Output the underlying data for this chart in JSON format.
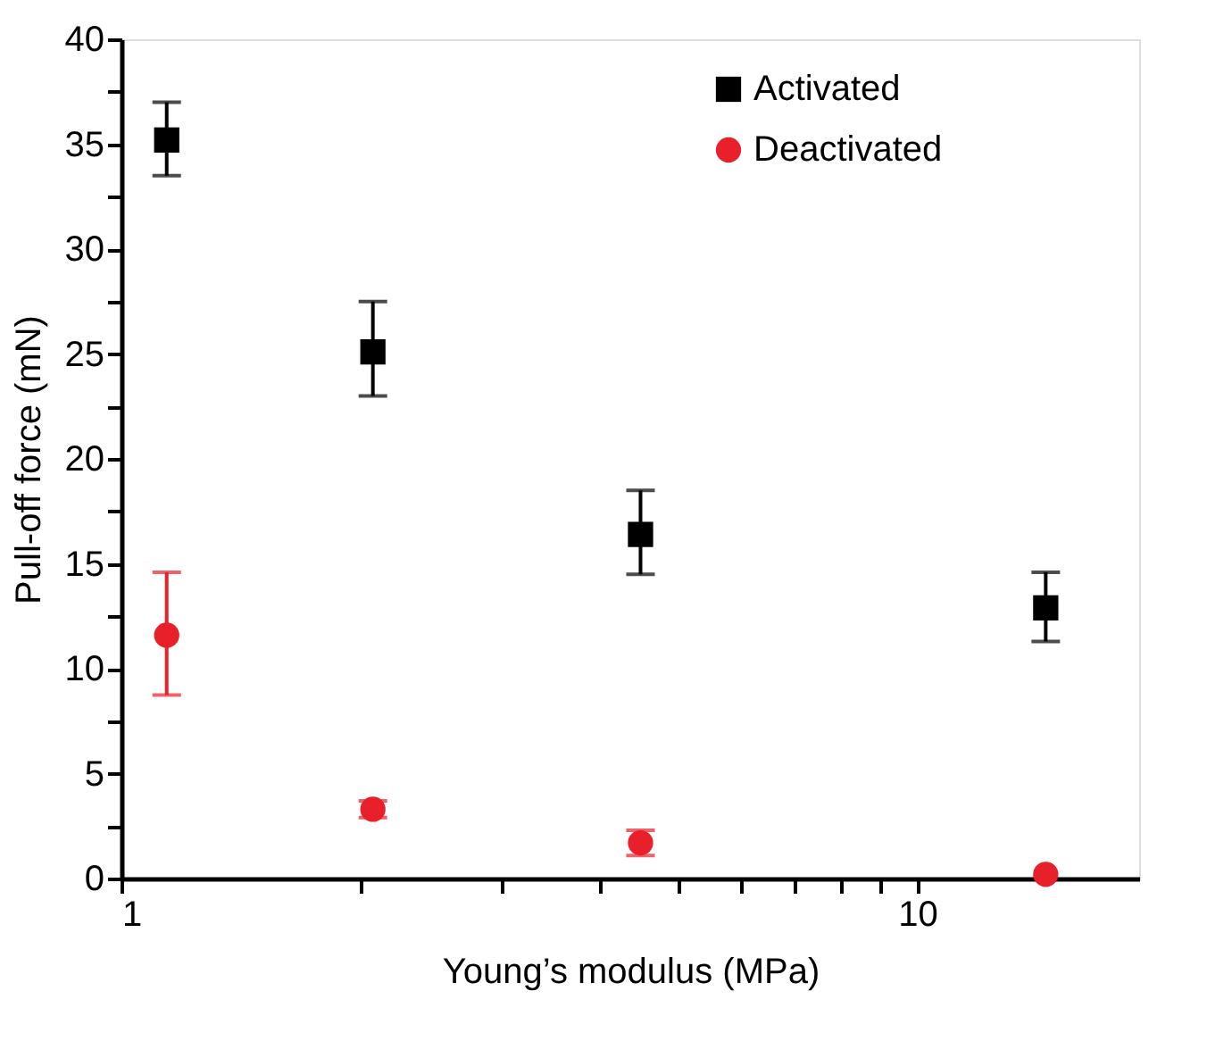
{
  "chart_data": {
    "type": "scatter",
    "xlabel": "Young’s modulus (MPa)",
    "ylabel": "Pull-off force (mN)",
    "log": "x",
    "xlim": [
      1,
      19
    ],
    "ylim": [
      0,
      40
    ],
    "xticks": [
      1,
      {
        "value": 2,
        "label": null
      },
      {
        "value": 3,
        "label": null
      },
      {
        "value": 4,
        "label": null
      },
      {
        "value": 5,
        "label": null
      },
      {
        "value": 6,
        "label": null
      },
      {
        "value": 7,
        "label": null
      },
      {
        "value": 8,
        "label": null
      },
      {
        "value": 9,
        "label": null
      },
      10
    ],
    "yticks": [
      0,
      {
        "value": 2.5,
        "label": null
      },
      5,
      {
        "value": 7.5,
        "label": null
      },
      10,
      {
        "value": 12.5,
        "label": null
      },
      15,
      {
        "value": 17.5,
        "label": null
      },
      20,
      {
        "value": 22.5,
        "label": null
      },
      25,
      {
        "value": 27.5,
        "label": null
      },
      30,
      {
        "value": 32.5,
        "label": null
      },
      35,
      {
        "value": 37.5,
        "label": null
      },
      40
    ],
    "legend": "top",
    "grid": false,
    "series": [
      {
        "name": "Activated",
        "color": "#000000",
        "marker": "square",
        "x": [
          1.14,
          2.07,
          4.49,
          14.5
        ],
        "values": [
          35.2,
          25.1,
          16.4,
          12.9
        ],
        "errors": [
          [
            33.5,
            37.0
          ],
          [
            23.0,
            27.5
          ],
          [
            14.5,
            18.5
          ],
          [
            11.3,
            14.6
          ]
        ]
      },
      {
        "name": "Deactivated",
        "color": "#e8202a",
        "marker": "circle",
        "x": [
          1.14,
          2.07,
          4.49,
          14.5
        ],
        "values": [
          11.6,
          3.3,
          1.7,
          0.2
        ],
        "errors": [
          [
            8.75,
            14.6
          ],
          [
            2.9,
            3.7
          ],
          [
            1.1,
            2.3
          ],
          null
        ]
      }
    ]
  }
}
